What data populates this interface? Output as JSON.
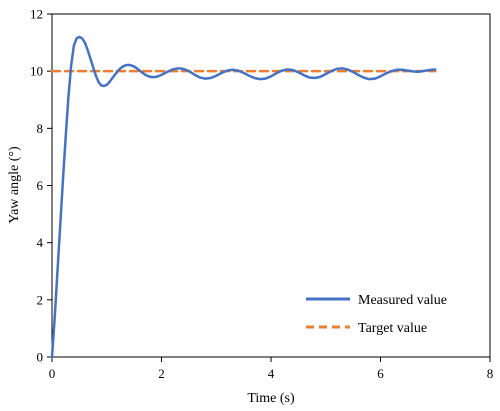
{
  "chart_data": {
    "type": "line",
    "title": "",
    "xlabel": "Time (s)",
    "ylabel": "Yaw angle (°)",
    "xlim": [
      0,
      8
    ],
    "ylim": [
      0,
      12
    ],
    "xticks": [
      "0",
      "2",
      "4",
      "6",
      "8"
    ],
    "yticks": [
      "0",
      "2",
      "4",
      "6",
      "8",
      "10",
      "12"
    ],
    "grid": false,
    "legend_position": "bottom-right",
    "series": [
      {
        "name": "Measured value",
        "color": "#4472C4",
        "style": "solid",
        "x": [
          0,
          0.05,
          0.1,
          0.15,
          0.2,
          0.25,
          0.3,
          0.35,
          0.4,
          0.45,
          0.5,
          0.55,
          0.6,
          0.65,
          0.7,
          0.75,
          0.8,
          0.85,
          0.9,
          0.95,
          1.0,
          1.05,
          1.1,
          1.15,
          1.2,
          1.25,
          1.3,
          1.35,
          1.4,
          1.45,
          1.5,
          1.55,
          1.6,
          1.65,
          1.7,
          1.75,
          1.8,
          1.85,
          1.9,
          1.95,
          2.0,
          2.1,
          2.2,
          2.3,
          2.4,
          2.5,
          2.6,
          2.7,
          2.8,
          2.9,
          3.0,
          3.1,
          3.2,
          3.3,
          3.4,
          3.5,
          3.6,
          3.7,
          3.8,
          3.9,
          4.0,
          4.1,
          4.2,
          4.3,
          4.4,
          4.5,
          4.6,
          4.7,
          4.8,
          4.9,
          5.0,
          5.1,
          5.2,
          5.3,
          5.4,
          5.5,
          5.6,
          5.7,
          5.8,
          5.9,
          6.0,
          6.1,
          6.2,
          6.3,
          6.4,
          6.5,
          6.6,
          6.7,
          6.8,
          6.9,
          7.0
        ],
        "y": [
          0,
          1.4,
          3.0,
          4.6,
          6.2,
          7.7,
          9.1,
          10.2,
          10.9,
          11.15,
          11.2,
          11.15,
          11.0,
          10.75,
          10.45,
          10.15,
          9.85,
          9.62,
          9.5,
          9.48,
          9.52,
          9.62,
          9.75,
          9.88,
          10.0,
          10.1,
          10.17,
          10.21,
          10.22,
          10.2,
          10.16,
          10.1,
          10.02,
          9.95,
          9.88,
          9.83,
          9.8,
          9.79,
          9.8,
          9.83,
          9.87,
          9.97,
          10.06,
          10.1,
          10.08,
          10.0,
          9.88,
          9.78,
          9.74,
          9.76,
          9.84,
          9.94,
          10.02,
          10.05,
          10.02,
          9.94,
          9.84,
          9.76,
          9.72,
          9.74,
          9.82,
          9.93,
          10.02,
          10.06,
          10.04,
          9.96,
          9.86,
          9.78,
          9.76,
          9.8,
          9.9,
          10.0,
          10.08,
          10.1,
          10.06,
          9.97,
          9.86,
          9.77,
          9.72,
          9.74,
          9.82,
          9.92,
          10.0,
          10.05,
          10.05,
          10.02,
          9.99,
          9.98,
          10.01,
          10.04,
          10.06
        ]
      },
      {
        "name": "Target value",
        "color": "#ED7D31",
        "style": "dashed",
        "x": [
          0,
          7
        ],
        "y": [
          10,
          10
        ]
      }
    ]
  }
}
